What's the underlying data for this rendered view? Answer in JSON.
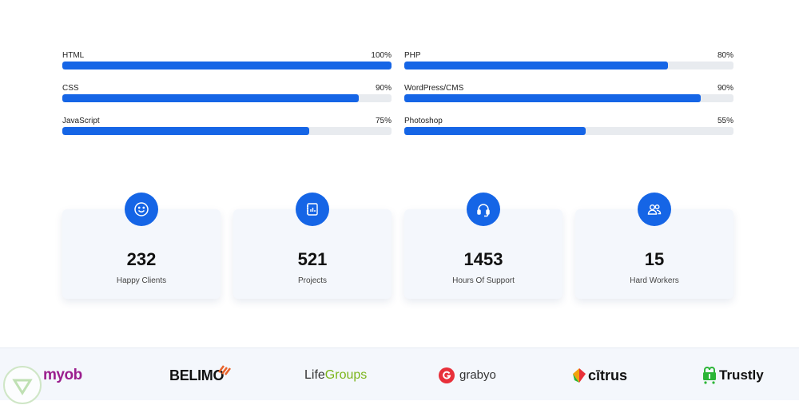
{
  "skills": [
    {
      "name": "HTML",
      "percent_label": "100%",
      "percent": 100
    },
    {
      "name": "PHP",
      "percent_label": "80%",
      "percent": 80
    },
    {
      "name": "CSS",
      "percent_label": "90%",
      "percent": 90
    },
    {
      "name": "WordPress/CMS",
      "percent_label": "90%",
      "percent": 90
    },
    {
      "name": "JavaScript",
      "percent_label": "75%",
      "percent": 75
    },
    {
      "name": "Photoshop",
      "percent_label": "55%",
      "percent": 55
    }
  ],
  "counters": [
    {
      "value": "232",
      "label": "Happy Clients",
      "icon": "smile-icon"
    },
    {
      "value": "521",
      "label": "Projects",
      "icon": "notebook-icon"
    },
    {
      "value": "1453",
      "label": "Hours Of Support",
      "icon": "headset-icon"
    },
    {
      "value": "15",
      "label": "Hard Workers",
      "icon": "people-icon"
    }
  ],
  "clients": {
    "myob": "myob",
    "belimo": "BELIMO",
    "lifegroups_1": "Life",
    "lifegroups_2": "Groups",
    "grabyo": "grabyo",
    "citrus": "cītrus",
    "trustly": "Trustly"
  },
  "colors": {
    "accent": "#1565e6",
    "track": "#e8ebef",
    "card": "#f4f7fc",
    "myob": "#9b1e8e",
    "lifegroups": "#7bb51b",
    "grabyo": "#e8303a",
    "trustly": "#2bb536"
  }
}
